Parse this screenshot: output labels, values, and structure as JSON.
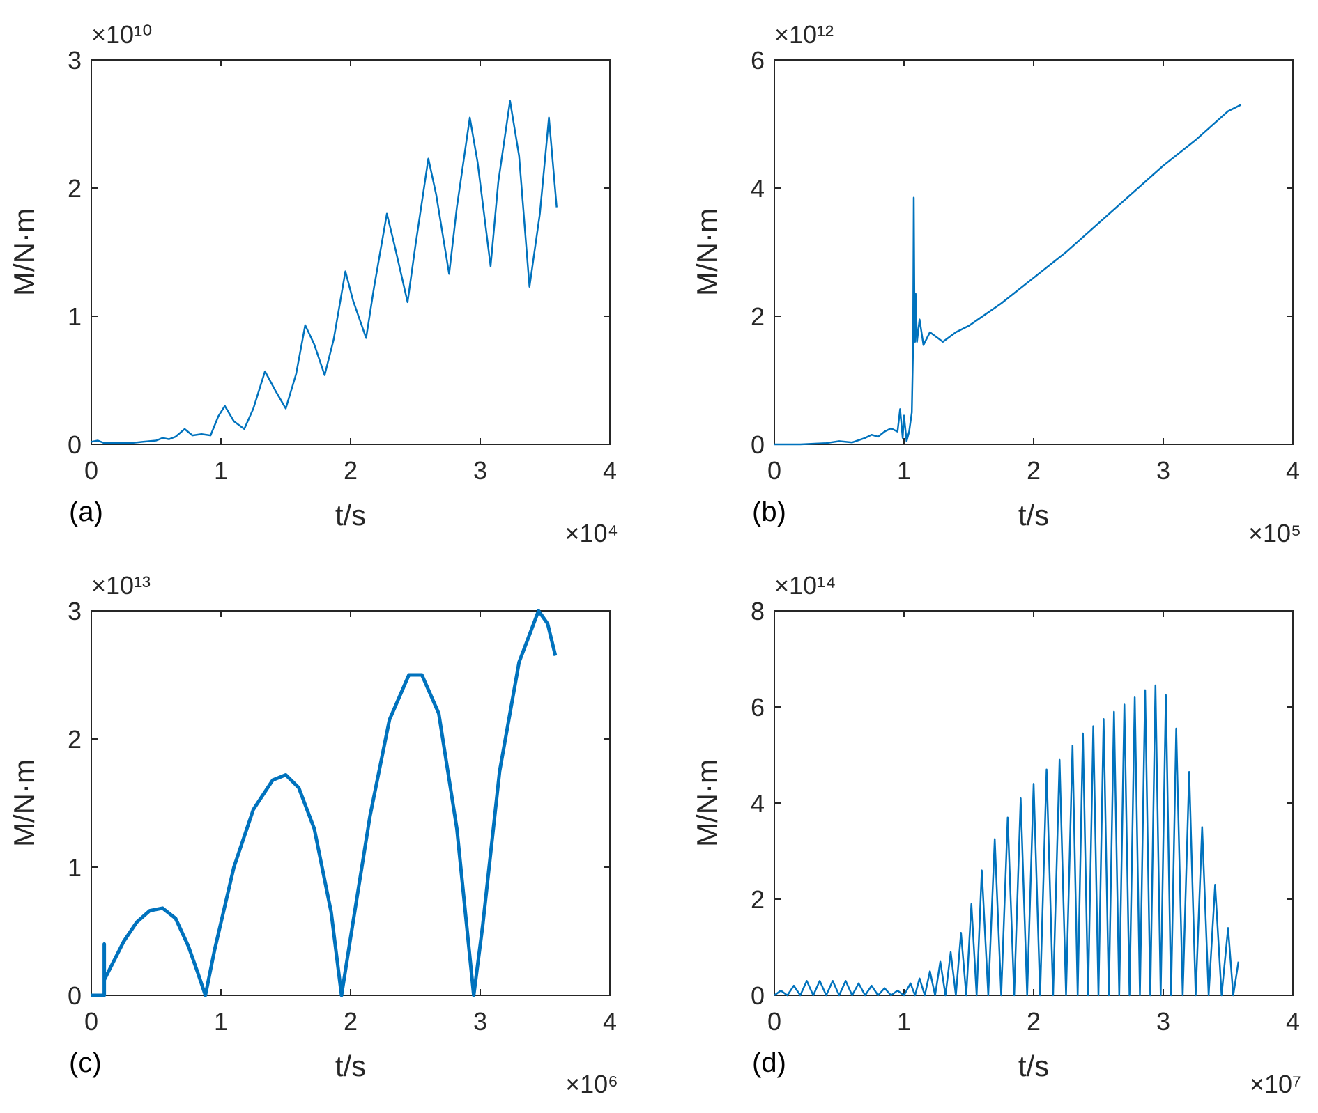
{
  "colors": {
    "series": "#0072BD",
    "axis": "#262626",
    "background": "#FFFFFF"
  },
  "chart_data": [
    {
      "panel_label": "(a)",
      "type": "line",
      "xlabel": "t/s",
      "ylabel": "M/N·m",
      "x_exponent": "×10⁴",
      "y_exponent": "×10¹⁰",
      "xlim": [
        0,
        4
      ],
      "ylim": [
        0,
        3
      ],
      "xticks": [
        "0",
        "1",
        "2",
        "3",
        "4"
      ],
      "yticks": [
        "0",
        "1",
        "2",
        "3"
      ],
      "grid": false,
      "x": [
        0,
        0.05,
        0.1,
        0.2,
        0.3,
        0.4,
        0.5,
        0.55,
        0.6,
        0.65,
        0.72,
        0.78,
        0.85,
        0.92,
        0.98,
        1.03,
        1.1,
        1.18,
        1.25,
        1.34,
        1.42,
        1.5,
        1.58,
        1.65,
        1.72,
        1.8,
        1.87,
        1.96,
        2.02,
        2.12,
        2.18,
        2.28,
        2.34,
        2.44,
        2.5,
        2.6,
        2.66,
        2.76,
        2.82,
        2.92,
        2.98,
        3.08,
        3.14,
        3.23,
        3.3,
        3.38,
        3.46,
        3.53,
        3.59
      ],
      "y": [
        0.02,
        0.03,
        0.01,
        0.01,
        0.01,
        0.02,
        0.03,
        0.05,
        0.04,
        0.06,
        0.12,
        0.07,
        0.08,
        0.07,
        0.22,
        0.3,
        0.18,
        0.12,
        0.28,
        0.57,
        0.42,
        0.28,
        0.55,
        0.93,
        0.78,
        0.54,
        0.82,
        1.35,
        1.12,
        0.83,
        1.22,
        1.8,
        1.55,
        1.11,
        1.55,
        2.23,
        1.95,
        1.33,
        1.85,
        2.55,
        2.2,
        1.39,
        2.05,
        2.68,
        2.25,
        1.23,
        1.8,
        2.55,
        1.85
      ]
    },
    {
      "panel_label": "(b)",
      "type": "line",
      "xlabel": "t/s",
      "ylabel": "M/N·m",
      "x_exponent": "×10⁵",
      "y_exponent": "×10¹²",
      "xlim": [
        0,
        4
      ],
      "ylim": [
        0,
        6
      ],
      "xticks": [
        "0",
        "1",
        "2",
        "3",
        "4"
      ],
      "yticks": [
        "0",
        "2",
        "4",
        "6"
      ],
      "grid": false,
      "x": [
        0,
        0.2,
        0.4,
        0.5,
        0.6,
        0.7,
        0.75,
        0.8,
        0.85,
        0.9,
        0.95,
        0.97,
        0.99,
        1.0,
        1.02,
        1.04,
        1.06,
        1.07,
        1.075,
        1.08,
        1.085,
        1.09,
        1.1,
        1.12,
        1.15,
        1.2,
        1.3,
        1.4,
        1.5,
        1.75,
        2.0,
        2.25,
        2.5,
        2.75,
        3.0,
        3.25,
        3.5,
        3.6
      ],
      "y": [
        0,
        0,
        0.02,
        0.05,
        0.03,
        0.1,
        0.15,
        0.12,
        0.2,
        0.25,
        0.2,
        0.55,
        0.1,
        0.45,
        0.05,
        0.2,
        0.5,
        1.5,
        3.85,
        2.2,
        1.6,
        2.35,
        1.6,
        1.95,
        1.55,
        1.75,
        1.6,
        1.75,
        1.85,
        2.2,
        2.6,
        3.0,
        3.45,
        3.9,
        4.35,
        4.75,
        5.2,
        5.3
      ]
    },
    {
      "panel_label": "(c)",
      "type": "line",
      "xlabel": "t/s",
      "ylabel": "M/N·m",
      "x_exponent": "×10⁶",
      "y_exponent": "×10¹³",
      "xlim": [
        0,
        4
      ],
      "ylim": [
        0,
        3
      ],
      "xticks": [
        "0",
        "1",
        "2",
        "3",
        "4"
      ],
      "yticks": [
        "0",
        "1",
        "2",
        "3"
      ],
      "grid": false,
      "x": [
        0,
        0.1,
        0.1,
        0.1,
        0.15,
        0.25,
        0.35,
        0.45,
        0.55,
        0.65,
        0.75,
        0.82,
        0.88,
        0.95,
        1.1,
        1.25,
        1.4,
        1.5,
        1.6,
        1.72,
        1.85,
        1.93,
        2.0,
        2.15,
        2.3,
        2.45,
        2.55,
        2.68,
        2.82,
        2.95,
        3.02,
        3.15,
        3.3,
        3.45,
        3.52,
        3.58
      ],
      "y": [
        0,
        0,
        0.4,
        0.12,
        0.22,
        0.42,
        0.57,
        0.66,
        0.68,
        0.6,
        0.38,
        0.18,
        0,
        0.35,
        1.0,
        1.45,
        1.68,
        1.72,
        1.62,
        1.3,
        0.65,
        0,
        0.45,
        1.4,
        2.15,
        2.5,
        2.5,
        2.2,
        1.3,
        0,
        0.55,
        1.75,
        2.6,
        3.0,
        2.9,
        2.65
      ]
    },
    {
      "panel_label": "(d)",
      "type": "line",
      "xlabel": "t/s",
      "ylabel": "M/N·m",
      "x_exponent": "×10⁷",
      "y_exponent": "×10¹⁴",
      "xlim": [
        0,
        4
      ],
      "ylim": [
        0,
        8
      ],
      "xticks": [
        "0",
        "1",
        "2",
        "3",
        "4"
      ],
      "yticks": [
        "0",
        "2",
        "4",
        "6",
        "8"
      ],
      "grid": false,
      "peaks_x": [
        0.05,
        0.15,
        0.25,
        0.35,
        0.45,
        0.55,
        0.65,
        0.75,
        0.85,
        0.95,
        1.05,
        1.12,
        1.2,
        1.28,
        1.36,
        1.44,
        1.52,
        1.6,
        1.7,
        1.8,
        1.9,
        2.0,
        2.1,
        2.2,
        2.3,
        2.38,
        2.46,
        2.54,
        2.62,
        2.7,
        2.78,
        2.86,
        2.94,
        3.02,
        3.1,
        3.2,
        3.3,
        3.4,
        3.5,
        3.58
      ],
      "peaks_y": [
        0.1,
        0.2,
        0.3,
        0.3,
        0.3,
        0.3,
        0.25,
        0.2,
        0.15,
        0.1,
        0.25,
        0.35,
        0.5,
        0.7,
        0.9,
        1.3,
        1.9,
        2.6,
        3.25,
        3.7,
        4.1,
        4.4,
        4.7,
        4.9,
        5.2,
        5.45,
        5.6,
        5.75,
        5.9,
        6.05,
        6.2,
        6.35,
        6.45,
        6.25,
        5.55,
        4.65,
        3.5,
        2.3,
        1.4,
        0.7
      ]
    }
  ]
}
